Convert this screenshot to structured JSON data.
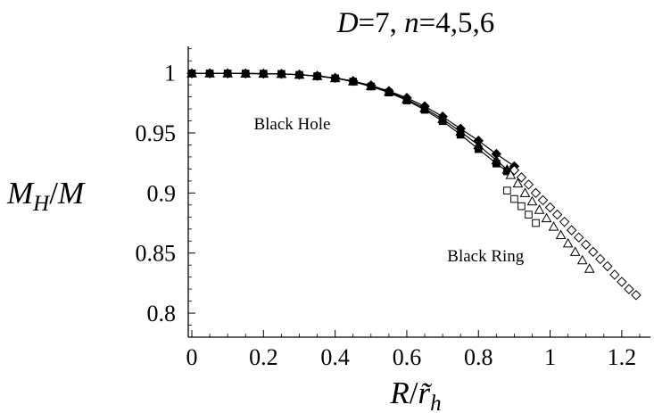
{
  "chart_data": {
    "type": "scatter",
    "title_parts": [
      {
        "text": "D",
        "italic": true
      },
      {
        "text": "=7, ",
        "italic": false
      },
      {
        "text": "n",
        "italic": true
      },
      {
        "text": "=4,5,6",
        "italic": false
      }
    ],
    "xlabel": "R/r̃h",
    "ylabel": "MH/M",
    "xlim": [
      -0.01,
      1.28
    ],
    "ylim": [
      0.78,
      1.022
    ],
    "x_ticks": [
      0,
      0.2,
      0.4,
      0.6,
      0.8,
      1,
      1.2
    ],
    "x_tick_labels": [
      "0",
      "0.2",
      "0.4",
      "0.6",
      "0.8",
      "1",
      "1.2"
    ],
    "y_ticks": [
      0.8,
      0.85,
      0.9,
      0.95,
      1
    ],
    "y_tick_labels": [
      "0.8",
      "0.85",
      "0.9",
      "0.95",
      "1"
    ],
    "grid": false,
    "annotations": [
      {
        "text": "Black Hole",
        "x": 0.28,
        "y": 0.9575
      },
      {
        "text": "Black Ring",
        "x": 0.82,
        "y": 0.8475
      }
    ],
    "series": [
      {
        "branch": "black-hole",
        "marker": "filled-diamond",
        "line": true,
        "x": [
          0,
          0.05,
          0.1,
          0.15,
          0.2,
          0.25,
          0.3,
          0.35,
          0.4,
          0.45,
          0.5,
          0.55,
          0.6,
          0.65,
          0.7,
          0.75,
          0.8,
          0.85,
          0.9
        ],
        "y": [
          0.9995,
          0.9995,
          0.9995,
          0.9994,
          0.9993,
          0.9991,
          0.9985,
          0.9975,
          0.9958,
          0.9932,
          0.9895,
          0.9848,
          0.9792,
          0.9722,
          0.9636,
          0.9535,
          0.9435,
          0.9325,
          0.9222
        ]
      },
      {
        "branch": "black-hole",
        "marker": "filled-triangle",
        "line": true,
        "x": [
          0,
          0.05,
          0.1,
          0.15,
          0.2,
          0.25,
          0.3,
          0.35,
          0.4,
          0.45,
          0.5,
          0.55,
          0.6,
          0.65,
          0.7,
          0.75,
          0.8,
          0.85,
          0.88
        ],
        "y": [
          0.9995,
          0.9995,
          0.9995,
          0.9994,
          0.9993,
          0.9991,
          0.9984,
          0.9973,
          0.9956,
          0.993,
          0.989,
          0.9842,
          0.978,
          0.9705,
          0.9615,
          0.951,
          0.9398,
          0.9272,
          0.9195
        ]
      },
      {
        "branch": "black-hole",
        "marker": "filled-square",
        "line": true,
        "x": [
          0,
          0.05,
          0.1,
          0.15,
          0.2,
          0.25,
          0.3,
          0.35,
          0.4,
          0.45,
          0.5,
          0.55,
          0.6,
          0.65,
          0.7,
          0.75,
          0.8,
          0.85,
          0.88
        ],
        "y": [
          0.9995,
          0.9995,
          0.9995,
          0.9994,
          0.9993,
          0.9991,
          0.9983,
          0.9972,
          0.9954,
          0.9927,
          0.9886,
          0.9836,
          0.977,
          0.9692,
          0.9598,
          0.9485,
          0.9365,
          0.9245,
          0.918
        ]
      },
      {
        "branch": "black-ring",
        "marker": "open-diamond",
        "line": false,
        "x": [
          0.9,
          0.92,
          0.94,
          0.96,
          0.98,
          1.0,
          1.02,
          1.04,
          1.06,
          1.08,
          1.1,
          1.12,
          1.14,
          1.16,
          1.18,
          1.2,
          1.22,
          1.24
        ],
        "y": [
          0.919,
          0.913,
          0.907,
          0.9,
          0.894,
          0.888,
          0.882,
          0.876,
          0.869,
          0.863,
          0.857,
          0.851,
          0.845,
          0.839,
          0.832,
          0.826,
          0.82,
          0.815
        ]
      },
      {
        "branch": "black-ring",
        "marker": "open-triangle",
        "line": false,
        "x": [
          0.89,
          0.91,
          0.93,
          0.95,
          0.97,
          0.99,
          1.01,
          1.03,
          1.05,
          1.07,
          1.09,
          1.11
        ],
        "y": [
          0.915,
          0.908,
          0.9,
          0.893,
          0.886,
          0.879,
          0.872,
          0.865,
          0.858,
          0.851,
          0.844,
          0.837
        ]
      },
      {
        "branch": "black-ring",
        "marker": "open-square",
        "line": false,
        "x": [
          0.88,
          0.9,
          0.92,
          0.94,
          0.96
        ],
        "y": [
          0.902,
          0.895,
          0.889,
          0.882,
          0.875
        ]
      }
    ]
  }
}
